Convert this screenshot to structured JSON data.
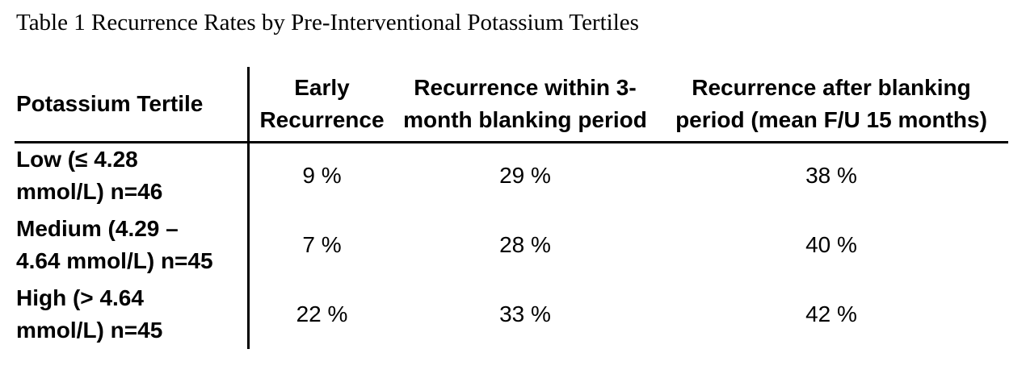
{
  "title": "Table 1 Recurrence Rates by Pre-Interventional Potassium Tertiles",
  "colors": {
    "text": "#000000",
    "background": "#ffffff",
    "rule": "#000000"
  },
  "table": {
    "columns": [
      {
        "id": "tertile",
        "lines": [
          "Potassium Tertile"
        ]
      },
      {
        "id": "early_recurrence",
        "lines": [
          "Early",
          "Recurrence"
        ]
      },
      {
        "id": "recurrence_within_blanking",
        "lines": [
          "Recurrence within 3-",
          "month blanking period"
        ]
      },
      {
        "id": "recurrence_after_blanking",
        "lines": [
          "Recurrence after blanking",
          "period (mean F/U 15 months)"
        ]
      }
    ],
    "rows": [
      {
        "tertile_lines": [
          "Low (≤ 4.28",
          "mmol/L) n=46"
        ],
        "early": "9 %",
        "within": "29 %",
        "after": "38 %"
      },
      {
        "tertile_lines": [
          "Medium (4.29 –",
          "4.64 mmol/L) n=45"
        ],
        "early": "7 %",
        "within": "28 %",
        "after": "40 %"
      },
      {
        "tertile_lines": [
          "High (> 4.64",
          "mmol/L) n=45"
        ],
        "early": "22 %",
        "within": "33 %",
        "after": "42 %"
      }
    ]
  }
}
